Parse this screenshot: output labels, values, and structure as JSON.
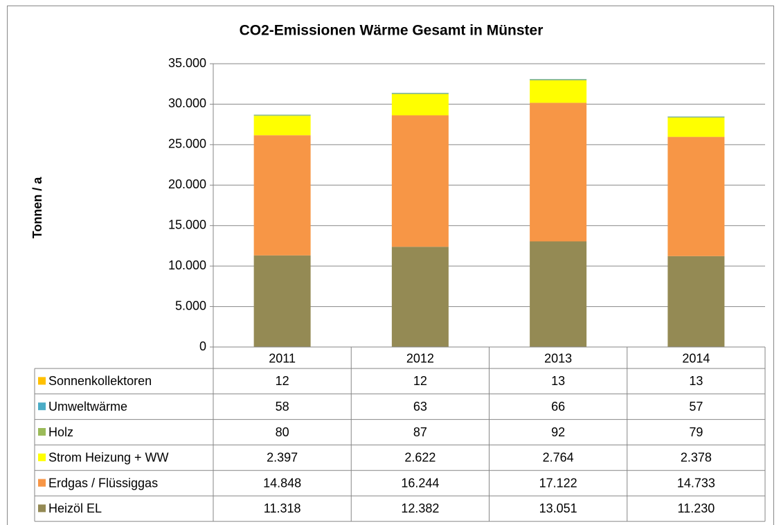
{
  "chart_data": {
    "type": "bar",
    "stacked": true,
    "title": "CO2-Emissionen Wärme Gesamt in Münster",
    "ylabel": "Tonnen / a",
    "categories": [
      "2011",
      "2012",
      "2013",
      "2014"
    ],
    "series": [
      {
        "name": "Sonnenkollektoren",
        "color": "#ffc000",
        "values": [
          12,
          12,
          13,
          13
        ],
        "value_labels": [
          "12",
          "12",
          "13",
          "13"
        ]
      },
      {
        "name": "Umweltwärme",
        "color": "#4bacc6",
        "values": [
          58,
          63,
          66,
          57
        ],
        "value_labels": [
          "58",
          "63",
          "66",
          "57"
        ]
      },
      {
        "name": "Holz",
        "color": "#9bbb59",
        "values": [
          80,
          87,
          92,
          79
        ],
        "value_labels": [
          "80",
          "87",
          "92",
          "79"
        ]
      },
      {
        "name": "Strom Heizung + WW",
        "color": "#ffff00",
        "values": [
          2397,
          2622,
          2764,
          2378
        ],
        "value_labels": [
          "2.397",
          "2.622",
          "2.764",
          "2.378"
        ]
      },
      {
        "name": "Erdgas / Flüssiggas",
        "color": "#f79646",
        "values": [
          14848,
          16244,
          17122,
          14733
        ],
        "value_labels": [
          "14.848",
          "16.244",
          "17.122",
          "14.733"
        ]
      },
      {
        "name": "Heizöl EL",
        "color": "#948a54",
        "values": [
          11318,
          12382,
          13051,
          11230
        ],
        "value_labels": [
          "11.318",
          "12.382",
          "13.051",
          "11.230"
        ]
      }
    ],
    "ylim": [
      0,
      35000
    ],
    "yticks": [
      0,
      {
        "value": 5000,
        "label": "5.000"
      },
      {
        "value": 10000,
        "label": "10.000"
      },
      {
        "value": 15000,
        "label": "15.000"
      },
      {
        "value": 20000,
        "label": "20.000"
      },
      {
        "value": 25000,
        "label": "25.000"
      },
      {
        "value": 30000,
        "label": "30.000"
      },
      {
        "value": 35000,
        "label": "35.000"
      }
    ],
    "grid": true
  }
}
